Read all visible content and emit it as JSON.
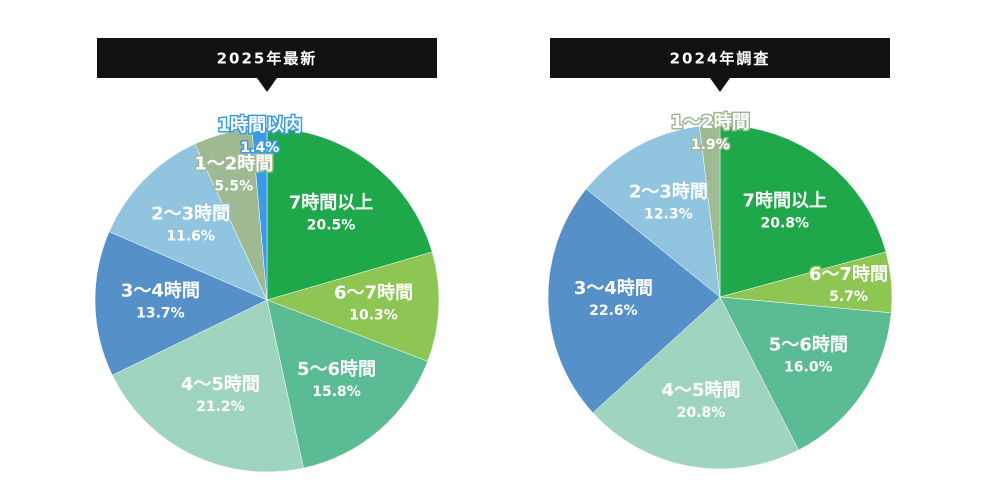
{
  "chart_data": [
    {
      "type": "pie",
      "title": "2025年最新",
      "categories": [
        "7時間以上",
        "6〜7時間",
        "5〜6時間",
        "4〜5時間",
        "3〜4時間",
        "2〜3時間",
        "1〜2時間",
        "1時間以内"
      ],
      "values": [
        20.5,
        10.3,
        15.8,
        21.2,
        13.7,
        11.6,
        5.5,
        1.4
      ],
      "value_labels": [
        "20.5%",
        "10.3%",
        "15.8%",
        "21.2%",
        "13.7%",
        "11.6%",
        "5.5%",
        "1.4%"
      ],
      "colors": [
        "#1ea84a",
        "#8dc653",
        "#5bbb93",
        "#9fd4bf",
        "#5590c8",
        "#90c4df",
        "#9fba93",
        "#3a9be6"
      ]
    },
    {
      "type": "pie",
      "title": "2024年調査",
      "categories": [
        "7時間以上",
        "6〜7時間",
        "5〜6時間",
        "4〜5時間",
        "3〜4時間",
        "2〜3時間",
        "1〜2時間"
      ],
      "values": [
        20.8,
        5.7,
        16,
        20.8,
        22.6,
        12.3,
        1.9
      ],
      "value_labels": [
        "20.8%",
        "5.7%",
        "16.0%",
        "20.8%",
        "22.6%",
        "12.3%",
        "1.9%"
      ],
      "colors": [
        "#1ea84a",
        "#8dc653",
        "#5bbb93",
        "#9fd4bf",
        "#5590c8",
        "#90c4df",
        "#9fba93"
      ]
    }
  ]
}
